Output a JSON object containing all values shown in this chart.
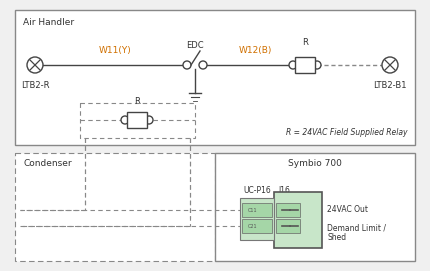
{
  "bg_color": "#f0f0f0",
  "wire_color": "#444444",
  "dashed_color": "#888888",
  "green_fill": "#c8e6c9",
  "green_fill2": "#a5d6a7",
  "text_color": "#333333",
  "orange_color": "#d07000",
  "box_edge": "#888888",
  "title_air_handler": "Air Handler",
  "title_condenser": "Condenser",
  "title_symbio": "Symbio 700",
  "label_ltb2r": "LTB2-R",
  "label_ltb2b1": "LTB2-B1",
  "label_w11": "W11(Y)",
  "label_w12": "W12(B)",
  "label_edc": "EDC",
  "label_r_top": "R",
  "label_r_mid": "R",
  "label_r_note": "R = 24VAC Field Supplied Relay",
  "label_uc_p16": "UC-P16",
  "label_j16": "J16",
  "label_24vac": "24VAC Out",
  "label_demand": "Demand Limit /",
  "label_shed": "Shed",
  "fs_small": 5.5,
  "fs_label": 6.0,
  "fs_title": 6.5,
  "fs_note": 5.5,
  "fs_orange": 6.5
}
